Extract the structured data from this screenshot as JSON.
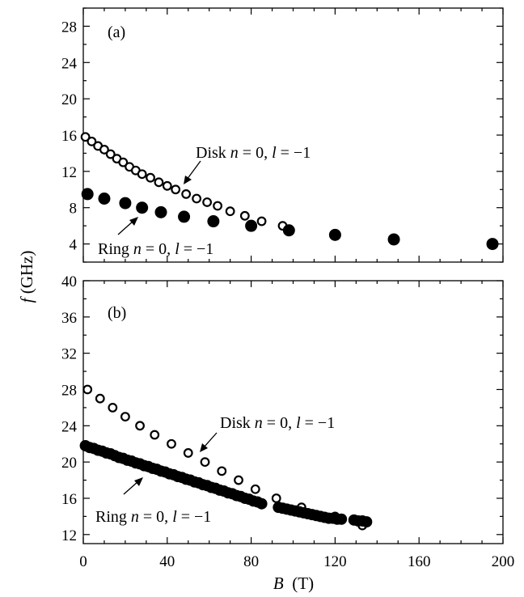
{
  "chart_data": [
    {
      "type": "scatter",
      "panel_label": "(a)",
      "xlim": [
        0,
        200
      ],
      "ylim": [
        2,
        30
      ],
      "y_ticks": [
        4,
        8,
        12,
        16,
        20,
        24,
        28
      ],
      "series": [
        {
          "name": "Disk n = 0, l = −1",
          "marker": "open-circle",
          "x": [
            1,
            4,
            7,
            10,
            13,
            16,
            19,
            22,
            25,
            28,
            32,
            36,
            40,
            44,
            49,
            54,
            59,
            64,
            70,
            77,
            85,
            95
          ],
          "y": [
            15.8,
            15.3,
            14.8,
            14.4,
            13.9,
            13.4,
            13.0,
            12.5,
            12.1,
            11.7,
            11.3,
            10.8,
            10.4,
            10.0,
            9.5,
            9.0,
            8.6,
            8.2,
            7.6,
            7.1,
            6.5,
            6.0
          ]
        },
        {
          "name": "Ring n = 0, l = −1",
          "marker": "filled-circle",
          "x": [
            2,
            10,
            20,
            28,
            37,
            48,
            62,
            80,
            98,
            120,
            148,
            195
          ],
          "y": [
            9.5,
            9.0,
            8.5,
            8.0,
            7.5,
            7.0,
            6.5,
            6.0,
            5.5,
            5.0,
            4.5,
            4.0
          ]
        }
      ],
      "annotations": [
        {
          "text_parts": [
            "Disk ",
            "n",
            " = 0, ",
            "l",
            " = −1"
          ]
        },
        {
          "text_parts": [
            "Ring ",
            "n",
            " = 0, ",
            "l",
            " = −1"
          ]
        }
      ]
    },
    {
      "type": "scatter",
      "panel_label": "(b)",
      "xlim": [
        0,
        200
      ],
      "ylim": [
        11,
        40
      ],
      "x_ticks": [
        0,
        40,
        80,
        120,
        160,
        200
      ],
      "y_ticks": [
        12,
        16,
        20,
        24,
        28,
        32,
        36,
        40
      ],
      "series": [
        {
          "name": "Disk n = 0, l = −1",
          "marker": "open-circle",
          "x": [
            2,
            8,
            14,
            20,
            27,
            34,
            42,
            50,
            58,
            66,
            74,
            82,
            92,
            104,
            120,
            133
          ],
          "y": [
            28.0,
            27.0,
            26.0,
            25.0,
            24.0,
            23.0,
            22.0,
            21.0,
            20.0,
            19.0,
            18.0,
            17.0,
            16.0,
            15.0,
            14.0,
            13.0
          ]
        },
        {
          "name": "Ring n = 0, l = −1",
          "marker": "filled-circle",
          "x": [
            1,
            3,
            5,
            7,
            9,
            11,
            13,
            15,
            17,
            19,
            21,
            23,
            25,
            27,
            29,
            31,
            33,
            35,
            37,
            39,
            41,
            43,
            45,
            47,
            49,
            51,
            53,
            55,
            57,
            59,
            61,
            63,
            65,
            67,
            69,
            71,
            73,
            75,
            77,
            79,
            81,
            83,
            85,
            93,
            95,
            97,
            99,
            101,
            103,
            105,
            107,
            109,
            111,
            113,
            115,
            117,
            119,
            121,
            123,
            129,
            131,
            133,
            135
          ],
          "y": [
            21.8,
            21.6,
            21.5,
            21.3,
            21.2,
            21.0,
            20.9,
            20.7,
            20.5,
            20.4,
            20.2,
            20.1,
            19.9,
            19.8,
            19.6,
            19.5,
            19.3,
            19.2,
            19.0,
            18.9,
            18.7,
            18.6,
            18.4,
            18.3,
            18.1,
            18.0,
            17.8,
            17.7,
            17.5,
            17.4,
            17.2,
            17.1,
            16.9,
            16.8,
            16.6,
            16.5,
            16.3,
            16.2,
            16.0,
            15.9,
            15.7,
            15.6,
            15.4,
            15.0,
            14.9,
            14.8,
            14.7,
            14.6,
            14.5,
            14.4,
            14.3,
            14.2,
            14.1,
            14.0,
            13.9,
            13.8,
            13.8,
            13.7,
            13.7,
            13.6,
            13.5,
            13.5,
            13.4
          ]
        }
      ],
      "annotations": [
        {
          "text_parts": [
            "Disk ",
            "n",
            " = 0, ",
            "l",
            " = −1"
          ]
        },
        {
          "text_parts": [
            "Ring ",
            "n",
            " = 0, ",
            "l",
            " = −1"
          ]
        }
      ]
    }
  ],
  "axes": {
    "ylabel_parts": [
      "f",
      " (GHz)"
    ],
    "xlabel_parts": [
      "B",
      "  (T)"
    ]
  }
}
